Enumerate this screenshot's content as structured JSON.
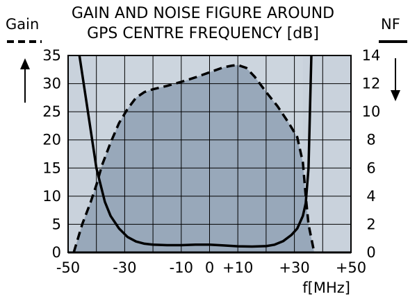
{
  "chart_data": {
    "type": "line",
    "title_lines": [
      "GAIN AND NOISE FIGURE AROUND",
      "GPS CENTRE FREQUENCY [dB]"
    ],
    "xlabel": "f[MHz]",
    "y_left_label": "Gain",
    "y_right_label": "NF",
    "xlim": [
      -50,
      50
    ],
    "y_left_lim": [
      0,
      35
    ],
    "y_right_lim": [
      0,
      14
    ],
    "x_ticks": [
      -50,
      -40,
      -30,
      -20,
      -10,
      0,
      10,
      20,
      30,
      40,
      50
    ],
    "x_tick_labels": [
      "-50",
      "-30",
      "-10",
      "0",
      "+10",
      "+30",
      "+50"
    ],
    "x_tick_label_values": [
      -50,
      -30,
      -10,
      0,
      10,
      30,
      50
    ],
    "y_left_ticks": [
      0,
      5,
      10,
      15,
      20,
      25,
      30,
      35
    ],
    "y_left_tick_labels": [
      "0",
      "5",
      "10",
      "15",
      "20",
      "25",
      "30",
      "35"
    ],
    "y_right_tick_labels": [
      "0",
      "2",
      "4",
      "6",
      "8",
      "10",
      "12",
      "14"
    ],
    "y_right_tick_values": [
      0,
      2,
      4,
      6,
      8,
      10,
      12,
      14
    ],
    "grid": true,
    "passband_shading": [
      -40,
      33
    ],
    "colors": {
      "out_of_band": "#c9d2dc",
      "in_band": "#ccd5de",
      "gain_fill": "#98a8ba",
      "line": "#000000",
      "grid": "#000000"
    },
    "series": [
      {
        "name": "Gain",
        "axis": "left",
        "style": "dashed",
        "filled": true,
        "x": [
          -48,
          -45,
          -42,
          -40,
          -38,
          -35,
          -32,
          -29,
          -26,
          -23,
          -20,
          -15,
          -10,
          -5,
          0,
          5,
          8,
          10,
          13,
          16,
          20,
          24,
          28,
          31,
          33,
          34,
          35,
          36,
          37
        ],
        "y": [
          0,
          5,
          9,
          12,
          15.5,
          19.5,
          23,
          25.5,
          27.5,
          28.5,
          29,
          29.6,
          30.3,
          31.1,
          32,
          32.9,
          33.2,
          33.3,
          32.8,
          31.2,
          28.5,
          26,
          23,
          20.5,
          16,
          10,
          5,
          2.5,
          0
        ]
      },
      {
        "name": "NF",
        "axis": "right",
        "style": "solid",
        "filled": false,
        "x": [
          -46,
          -43,
          -40,
          -37,
          -35,
          -32,
          -29,
          -26,
          -23,
          -20,
          -15,
          -10,
          -5,
          0,
          5,
          10,
          15,
          20,
          23,
          26,
          29,
          31,
          33,
          34,
          35,
          36
        ],
        "y": [
          14,
          10,
          6,
          3.6,
          2.6,
          1.7,
          1.1,
          0.78,
          0.62,
          0.55,
          0.52,
          0.52,
          0.55,
          0.55,
          0.5,
          0.44,
          0.42,
          0.45,
          0.55,
          0.8,
          1.25,
          1.7,
          2.6,
          3.5,
          6,
          14
        ]
      }
    ]
  }
}
